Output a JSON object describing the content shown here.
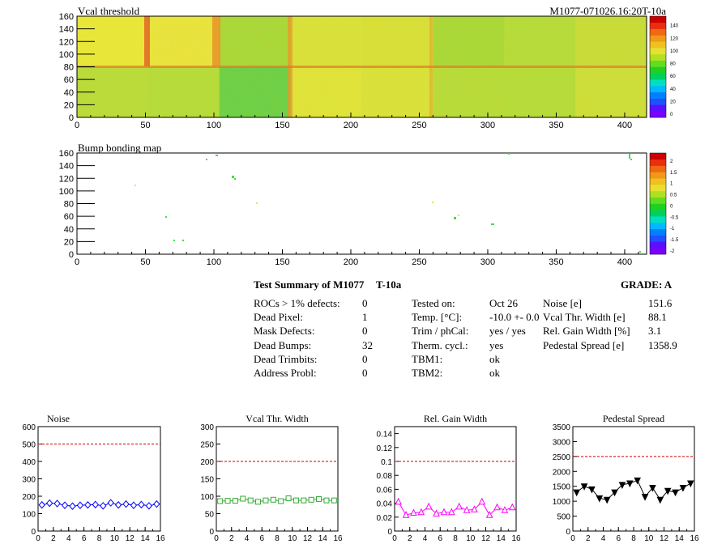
{
  "maps": {
    "vcal": {
      "title": "Vcal threshold",
      "id_label": "M1077-071026.16:20T-10a",
      "x_ticks": [
        0,
        50,
        100,
        150,
        200,
        250,
        300,
        350,
        400
      ],
      "y_ticks": [
        0,
        20,
        40,
        60,
        80,
        100,
        120,
        140,
        160
      ],
      "palette_ticks": [
        "0",
        "20",
        "40",
        "60",
        "80",
        "100",
        "120",
        "140"
      ]
    },
    "bump": {
      "title": "Bump bonding map",
      "x_ticks": [
        0,
        50,
        100,
        150,
        200,
        250,
        300,
        350,
        400
      ],
      "y_ticks": [
        0,
        20,
        40,
        60,
        80,
        100,
        120,
        140,
        160
      ],
      "palette_ticks": [
        "-2",
        "-1.5",
        "-1",
        "-0.5",
        "0",
        "0.5",
        "1",
        "1.5",
        "2"
      ]
    }
  },
  "summary": {
    "title": "Test Summary of M1077",
    "temp_label": "T-10a",
    "grade": "GRADE:  A",
    "col1": [
      {
        "label": "ROCs > 1% defects:",
        "value": "0"
      },
      {
        "label": "Dead Pixel:",
        "value": "1"
      },
      {
        "label": "Mask Defects:",
        "value": "0"
      },
      {
        "label": "Dead Bumps:",
        "value": "32"
      },
      {
        "label": "Dead Trimbits:",
        "value": "0"
      },
      {
        "label": "Address Probl:",
        "value": "0"
      }
    ],
    "col2": [
      {
        "label": "Tested on:",
        "value": "Oct 26"
      },
      {
        "label": "Temp. [°C]:",
        "value": "-10.0 +- 0.0"
      },
      {
        "label": "Trim / phCal:",
        "value": "yes / yes"
      },
      {
        "label": "Therm. cycl.:",
        "value": "yes"
      },
      {
        "label": "TBM1:",
        "value": "ok"
      },
      {
        "label": "TBM2:",
        "value": "ok"
      }
    ],
    "col3": [
      {
        "label": "Noise [e]",
        "value": "151.6"
      },
      {
        "label": "Vcal Thr. Width [e]",
        "value": "88.1"
      },
      {
        "label": "Rel. Gain Width [%]",
        "value": "3.1"
      },
      {
        "label": "Pedestal Spread [e]",
        "value": "1358.9"
      }
    ]
  },
  "chart_data": [
    {
      "type": "line",
      "title": "Noise",
      "x": [
        0,
        1,
        2,
        3,
        4,
        5,
        6,
        7,
        8,
        9,
        10,
        11,
        12,
        13,
        14,
        15
      ],
      "values": [
        150,
        160,
        158,
        148,
        143,
        148,
        150,
        152,
        145,
        162,
        150,
        155,
        148,
        152,
        145,
        155
      ],
      "ylim": [
        0,
        600
      ],
      "y_ticks": [
        0,
        100,
        200,
        300,
        400,
        500,
        600
      ],
      "x_ticks": [
        0,
        2,
        4,
        6,
        8,
        10,
        12,
        14,
        16
      ],
      "threshold": 500,
      "marker": "diamond",
      "color": "#0000ff"
    },
    {
      "type": "line",
      "title": "Vcal Thr. Width",
      "x": [
        0,
        1,
        2,
        3,
        4,
        5,
        6,
        7,
        8,
        9,
        10,
        11,
        12,
        13,
        14,
        15
      ],
      "values": [
        86,
        87,
        87,
        93,
        88,
        84,
        88,
        90,
        86,
        94,
        88,
        88,
        90,
        92,
        88,
        88
      ],
      "ylim": [
        0,
        300
      ],
      "y_ticks": [
        0,
        50,
        100,
        150,
        200,
        250,
        300
      ],
      "x_ticks": [
        0,
        2,
        4,
        6,
        8,
        10,
        12,
        14,
        16
      ],
      "threshold": 200,
      "marker": "square",
      "color": "#33aa33"
    },
    {
      "type": "line",
      "title": "Rel. Gain Width",
      "x": [
        0,
        1,
        2,
        3,
        4,
        5,
        6,
        7,
        8,
        9,
        10,
        11,
        12,
        13,
        14,
        15
      ],
      "values": [
        0.042,
        0.023,
        0.026,
        0.027,
        0.035,
        0.025,
        0.027,
        0.027,
        0.035,
        0.03,
        0.031,
        0.042,
        0.023,
        0.034,
        0.03,
        0.034
      ],
      "ylim": [
        0,
        0.15
      ],
      "y_ticks": [
        0,
        0.02,
        0.04,
        0.06,
        0.08,
        0.1,
        0.12,
        0.14
      ],
      "x_ticks": [
        0,
        2,
        4,
        6,
        8,
        10,
        12,
        14,
        16
      ],
      "threshold": 0.1,
      "marker": "triangle-up",
      "color": "#ff00ff"
    },
    {
      "type": "line",
      "title": "Pedestal Spread",
      "x": [
        0,
        1,
        2,
        3,
        4,
        5,
        6,
        7,
        8,
        9,
        10,
        11,
        12,
        13,
        14,
        15
      ],
      "values": [
        1300,
        1500,
        1400,
        1100,
        1050,
        1300,
        1550,
        1600,
        1700,
        1150,
        1450,
        1050,
        1350,
        1300,
        1450,
        1600
      ],
      "ylim": [
        0,
        3500
      ],
      "y_ticks": [
        0,
        500,
        1000,
        1500,
        2000,
        2500,
        3000,
        3500
      ],
      "x_ticks": [
        0,
        2,
        4,
        6,
        8,
        10,
        12,
        14,
        16
      ],
      "threshold": 2500,
      "marker": "triangle-down",
      "color": "#000000"
    }
  ]
}
